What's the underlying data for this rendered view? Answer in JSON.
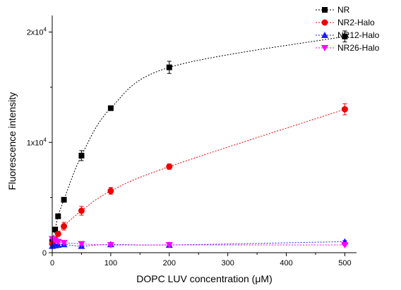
{
  "chart_data": {
    "type": "scatter",
    "xlabel": "DOPC LUV concentration (μM)",
    "ylabel": "Fluorescence intensity",
    "xlim": [
      0,
      520
    ],
    "ylim": [
      0,
      21500
    ],
    "x_ticks": [
      0,
      100,
      200,
      300,
      400,
      500
    ],
    "x_tick_labels": [
      "0",
      "100",
      "200",
      "300",
      "400",
      "500"
    ],
    "y_ticks": [
      0,
      10000,
      20000
    ],
    "y_tick_labels": [
      {
        "base": "0",
        "exp": ""
      },
      {
        "base": "1x10",
        "exp": "4"
      },
      {
        "base": "2x10",
        "exp": "4"
      }
    ],
    "grid": false,
    "legend_position": "top-right",
    "series": [
      {
        "name": "NR",
        "color": "#000000",
        "marker": "square",
        "x": [
          0,
          5,
          10,
          20,
          50,
          100,
          200,
          500
        ],
        "y": [
          1000,
          2100,
          3300,
          4800,
          8800,
          13100,
          16800,
          19600
        ],
        "err": [
          0,
          100,
          150,
          150,
          450,
          200,
          550,
          500
        ]
      },
      {
        "name": "NR2-Halo",
        "color": "#ee0000",
        "marker": "circle",
        "x": [
          0,
          5,
          10,
          20,
          50,
          100,
          200,
          500
        ],
        "y": [
          800,
          1200,
          1700,
          2400,
          3800,
          5600,
          7800,
          13000
        ],
        "err": [
          0,
          100,
          150,
          350,
          400,
          300,
          250,
          500
        ]
      },
      {
        "name": "NR12-Halo",
        "color": "#1a1aff",
        "marker": "triangle-up",
        "x": [
          0,
          5,
          10,
          20,
          50,
          100,
          200,
          500
        ],
        "y": [
          600,
          650,
          700,
          750,
          600,
          750,
          700,
          1000
        ],
        "err": [
          0,
          80,
          80,
          80,
          80,
          80,
          80,
          100
        ]
      },
      {
        "name": "NR26-Halo",
        "color": "#ff00ff",
        "marker": "triangle-down",
        "x": [
          0,
          5,
          10,
          20,
          50,
          100,
          200,
          500
        ],
        "y": [
          1250,
          1100,
          1000,
          900,
          800,
          700,
          700,
          700
        ],
        "err": [
          0,
          100,
          100,
          100,
          80,
          80,
          80,
          80
        ]
      }
    ]
  }
}
